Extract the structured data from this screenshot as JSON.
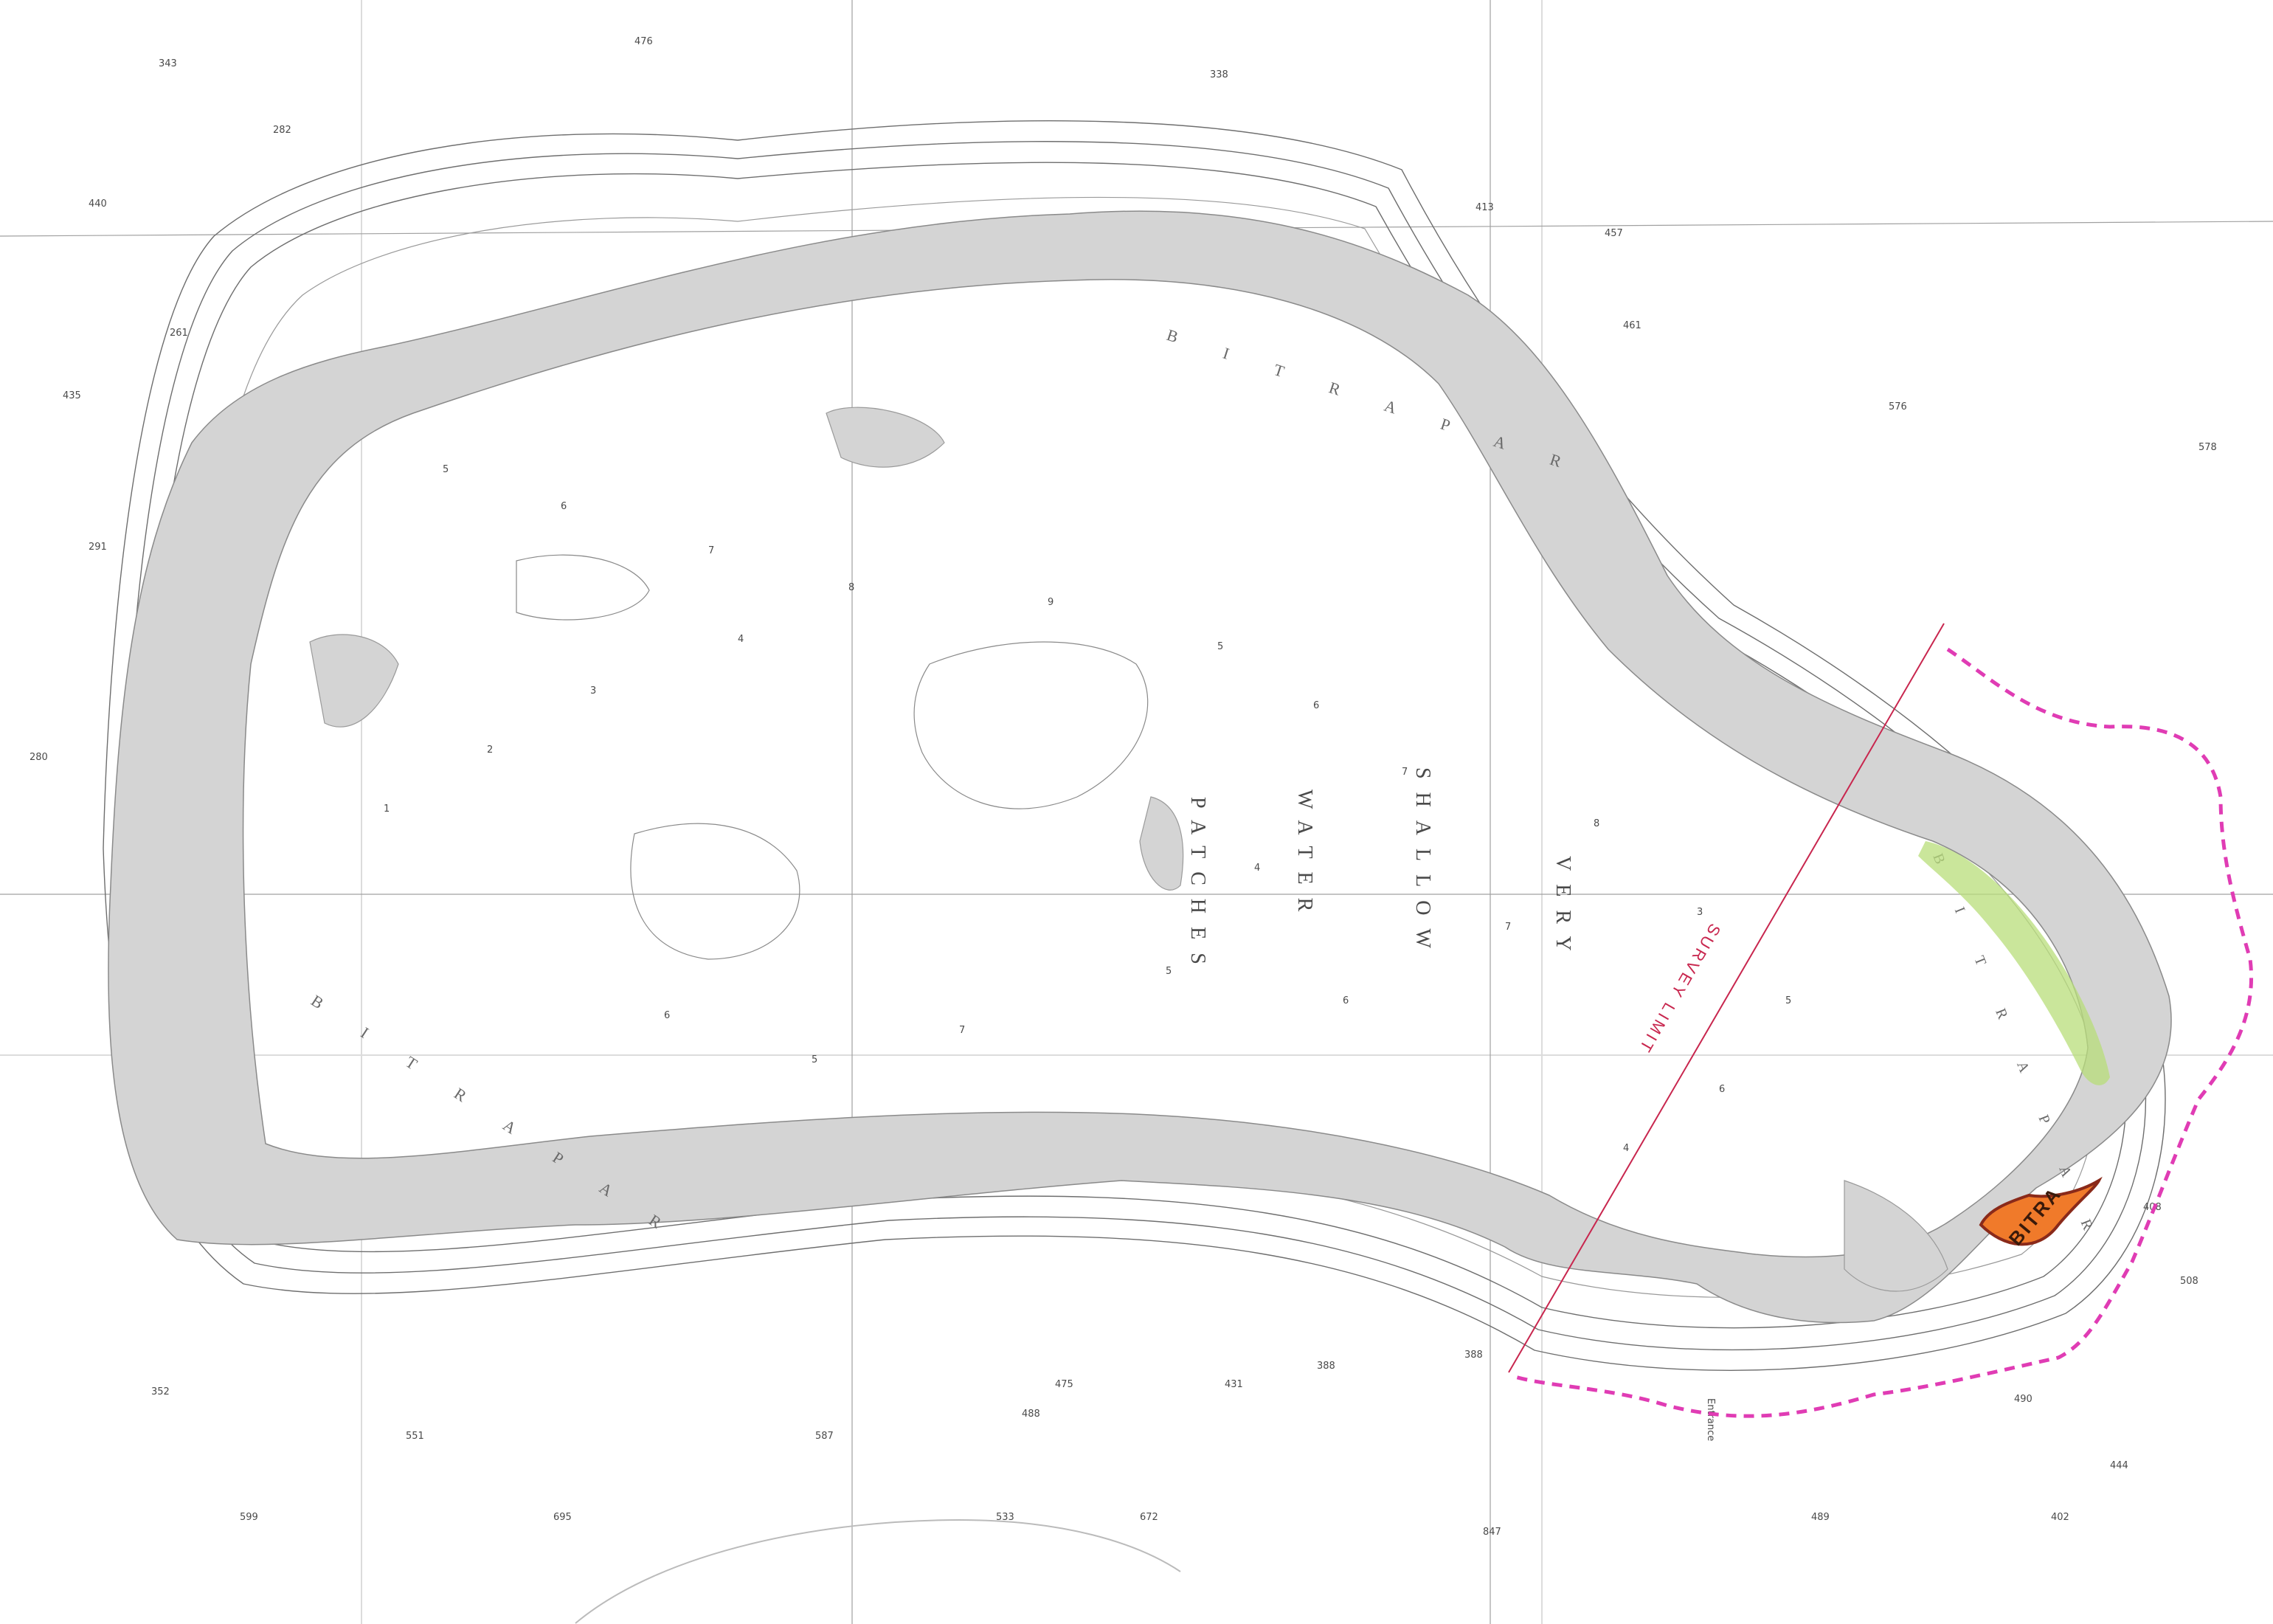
{
  "chart": {
    "feature_labels": {
      "bitra_par_top": "B I T R A   P A R",
      "bitra_par_left": "B I T R A   P A R",
      "bitra_par_right": "B I T R A   P A R",
      "shallow": "SHALLOW",
      "water": "WATER",
      "patches": "PATCHES",
      "very": "VERY",
      "entrance": "Entrance",
      "survey_limit": "SURVEY LIMIT",
      "island": "BITRA"
    },
    "soundings_deep": [
      "343",
      "476",
      "338",
      "282",
      "440",
      "261",
      "435",
      "291",
      "280",
      "352",
      "551",
      "599",
      "695",
      "587",
      "533",
      "672",
      "847",
      "489",
      "488",
      "475",
      "431",
      "388",
      "413",
      "388",
      "402",
      "408",
      "444",
      "457",
      "461",
      "508",
      "490",
      "576",
      "578"
    ],
    "soundings_shallow": [
      "5",
      "6",
      "7",
      "8",
      "4",
      "3",
      "2",
      "1",
      "9",
      "5",
      "6",
      "7",
      "4",
      "5",
      "6",
      "7",
      "8",
      "3",
      "5",
      "6",
      "4",
      "7",
      "5",
      "6"
    ],
    "colors": {
      "shoal": "#d4d4d4",
      "survey_limit": "#c8264e",
      "boundary": "#e03cb4",
      "island": "#f07a2a",
      "highlight": "#b8de7a"
    }
  }
}
